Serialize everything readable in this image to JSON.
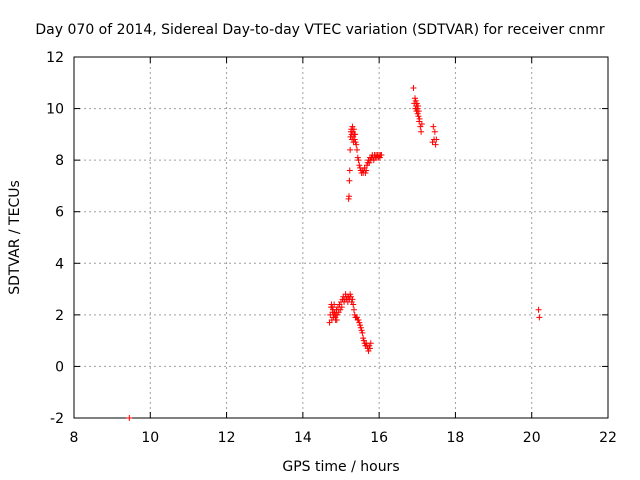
{
  "chart_data": {
    "type": "scatter",
    "title": "Day 070 of 2014, Sidereal Day-to-day VTEC variation (SDTVAR) for receiver cnmr",
    "xlabel": "GPS time / hours",
    "ylabel": "SDTVAR / TECUs",
    "xlim": [
      8,
      22
    ],
    "ylim": [
      -2,
      12
    ],
    "xticks": [
      8,
      10,
      12,
      14,
      16,
      18,
      20,
      22
    ],
    "yticks": [
      -2,
      0,
      2,
      4,
      6,
      8,
      10,
      12
    ],
    "grid": true,
    "legend": "none",
    "marker": "plus",
    "color": "#ff0000",
    "series": [
      {
        "x": [
          9.45,
          14.7,
          14.72,
          14.74,
          14.76,
          14.78,
          14.8,
          14.82,
          14.84,
          14.86,
          14.88,
          14.9,
          14.92,
          14.94,
          14.96,
          14.98,
          15.0,
          15.02,
          15.04,
          15.06,
          15.08,
          15.1,
          15.12,
          15.14,
          15.16,
          15.18,
          15.2,
          15.22,
          15.24,
          15.26,
          15.28,
          15.3,
          15.32,
          15.34,
          15.36,
          15.38,
          15.4,
          15.42,
          15.44,
          15.46,
          15.48,
          15.5,
          15.52,
          15.54,
          15.56,
          15.58,
          15.6,
          15.62,
          15.64,
          15.66,
          15.68,
          15.7,
          15.72,
          15.74,
          15.76,
          15.78,
          14.75,
          14.77,
          14.79,
          14.81,
          14.83,
          14.85,
          14.87,
          14.89,
          15.2,
          15.21,
          15.22,
          15.23,
          15.24,
          15.25,
          15.26,
          15.27,
          15.28,
          15.29,
          15.3,
          15.31,
          15.32,
          15.33,
          15.34,
          15.35,
          15.36,
          15.37,
          15.38,
          15.4,
          15.42,
          15.44,
          15.46,
          15.48,
          15.5,
          15.52,
          15.54,
          15.56,
          15.58,
          15.6,
          15.62,
          15.64,
          15.66,
          15.68,
          15.7,
          15.72,
          15.74,
          15.76,
          15.78,
          15.8,
          15.82,
          15.84,
          15.86,
          15.88,
          15.9,
          15.92,
          15.94,
          15.96,
          15.98,
          16.0,
          16.02,
          16.04,
          16.06,
          16.9,
          16.92,
          16.94,
          16.95,
          16.96,
          16.97,
          16.98,
          16.99,
          17.0,
          17.01,
          17.02,
          17.03,
          17.04,
          17.05,
          17.06,
          17.08,
          17.1,
          17.12,
          17.4,
          17.42,
          17.44,
          17.46,
          17.48,
          17.5,
          20.18,
          20.2
        ],
        "y": [
          -2.0,
          1.7,
          2.0,
          2.3,
          1.8,
          2.1,
          1.9,
          2.4,
          2.0,
          1.8,
          2.2,
          2.0,
          2.3,
          2.1,
          2.4,
          2.2,
          2.5,
          2.3,
          2.6,
          2.7,
          2.5,
          2.6,
          2.8,
          2.6,
          2.7,
          2.5,
          2.7,
          2.6,
          2.8,
          2.7,
          2.5,
          2.6,
          2.4,
          2.2,
          2.0,
          1.9,
          1.9,
          1.9,
          1.8,
          1.8,
          1.7,
          1.6,
          1.5,
          1.4,
          1.3,
          1.1,
          1.0,
          0.9,
          0.8,
          0.9,
          0.8,
          0.7,
          0.6,
          0.8,
          0.7,
          0.9,
          2.4,
          2.3,
          2.2,
          2.0,
          2.1,
          1.9,
          2.0,
          1.8,
          6.5,
          6.6,
          7.2,
          7.6,
          8.4,
          8.9,
          9.1,
          9.2,
          9.0,
          8.8,
          9.3,
          9.1,
          8.9,
          8.7,
          9.2,
          9.0,
          8.8,
          9.0,
          8.7,
          8.6,
          8.4,
          8.1,
          8.0,
          7.8,
          7.7,
          7.6,
          7.5,
          7.6,
          7.5,
          7.6,
          7.7,
          7.5,
          7.6,
          7.8,
          7.9,
          8.0,
          7.9,
          8.1,
          8.0,
          8.1,
          8.2,
          8.1,
          8.0,
          8.2,
          8.1,
          8.2,
          8.1,
          8.2,
          8.1,
          8.2,
          8.1,
          8.2,
          8.2,
          10.8,
          10.2,
          10.4,
          10.0,
          10.3,
          10.1,
          9.9,
          10.2,
          10.0,
          9.8,
          10.1,
          9.7,
          9.9,
          9.5,
          9.6,
          9.3,
          9.1,
          9.4,
          8.7,
          9.3,
          8.8,
          9.1,
          8.6,
          8.8,
          2.2,
          1.9
        ]
      }
    ]
  }
}
